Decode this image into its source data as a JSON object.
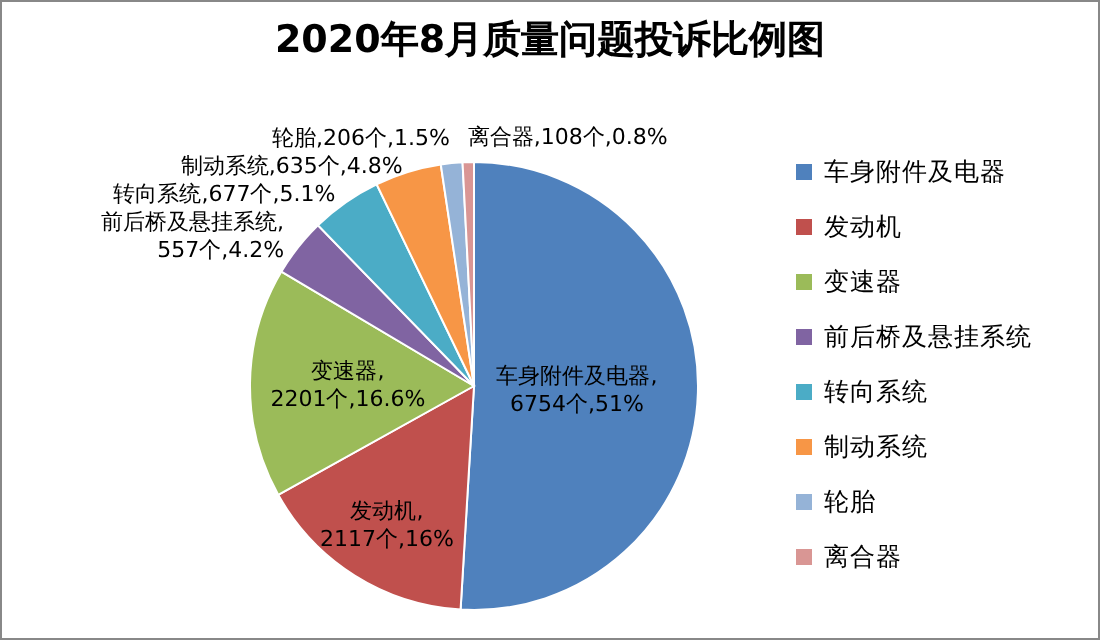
{
  "chart_data": {
    "type": "pie",
    "title": "2020年8月质量问题投诉比例图",
    "categories": [
      "车身附件及电器",
      "发动机",
      "变速器",
      "前后桥及悬挂系统",
      "转向系统",
      "制动系统",
      "轮胎",
      "离合器"
    ],
    "values": [
      6754,
      2117,
      2201,
      557,
      677,
      635,
      206,
      108
    ],
    "colors": [
      "#4f81bd",
      "#c0504d",
      "#9bbb59",
      "#8064a2",
      "#4bacc6",
      "#f79646",
      "#95b3d7",
      "#d99694"
    ],
    "value_labels": [
      "车身附件及电器,\n6754个,51%",
      "发动机,\n2117个,16%",
      "变速器,\n2201个,16.6%",
      "前后桥及悬挂系统,\n557个,4.2%",
      "转向系统,677个,5.1%",
      "制动系统,635个,4.8%",
      "轮胎,206个,1.5%",
      "离合器,108个,0.8%"
    ],
    "legend": "right"
  }
}
